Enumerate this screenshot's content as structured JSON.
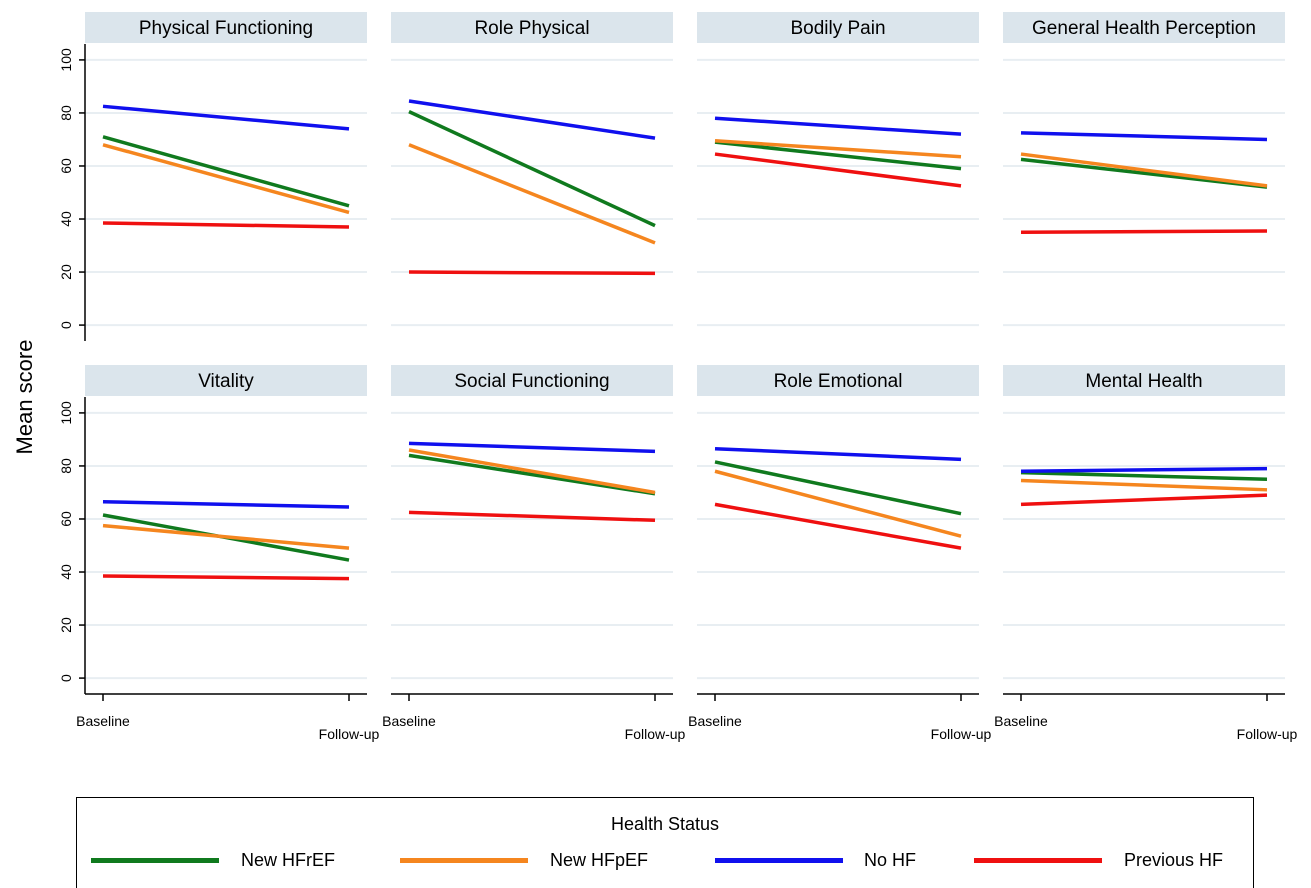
{
  "chart_data": {
    "type": "line",
    "y_axis_title": "Mean score",
    "x_categories": [
      "Baseline",
      "Follow-up"
    ],
    "y_ticks": [
      0,
      20,
      40,
      60,
      80,
      100
    ],
    "ylim": [
      -6,
      106
    ],
    "grid": true,
    "legend": {
      "title": "Health Status",
      "placement": "bottom",
      "entries": [
        "New HFrEF",
        "New HFpEF",
        "No HF",
        "Previous HF"
      ]
    },
    "series_styles": [
      {
        "name": "New HFrEF",
        "color": "#107a1e"
      },
      {
        "name": "New HFpEF",
        "color": "#f5861f"
      },
      {
        "name": "No HF",
        "color": "#1010ee"
      },
      {
        "name": "Previous HF",
        "color": "#ef1010"
      }
    ],
    "panels": [
      {
        "title": "Physical Functioning",
        "series": [
          {
            "name": "New HFrEF",
            "values": [
              71,
              45
            ]
          },
          {
            "name": "New HFpEF",
            "values": [
              68,
              42.5
            ]
          },
          {
            "name": "No HF",
            "values": [
              82.5,
              74
            ]
          },
          {
            "name": "Previous HF",
            "values": [
              38.5,
              37
            ]
          }
        ]
      },
      {
        "title": "Role Physical",
        "series": [
          {
            "name": "New HFrEF",
            "values": [
              80.5,
              37.5
            ]
          },
          {
            "name": "New HFpEF",
            "values": [
              68,
              31
            ]
          },
          {
            "name": "No HF",
            "values": [
              84.5,
              70.5
            ]
          },
          {
            "name": "Previous HF",
            "values": [
              20,
              19.5
            ]
          }
        ]
      },
      {
        "title": "Bodily Pain",
        "series": [
          {
            "name": "New HFrEF",
            "values": [
              69,
              59
            ]
          },
          {
            "name": "New HFpEF",
            "values": [
              69.5,
              63.5
            ]
          },
          {
            "name": "No HF",
            "values": [
              78,
              72
            ]
          },
          {
            "name": "Previous HF",
            "values": [
              64.5,
              52.5
            ]
          }
        ]
      },
      {
        "title": "General Health Perception",
        "series": [
          {
            "name": "New HFrEF",
            "values": [
              62.5,
              52
            ]
          },
          {
            "name": "New HFpEF",
            "values": [
              64.5,
              52.5
            ]
          },
          {
            "name": "No HF",
            "values": [
              72.5,
              70
            ]
          },
          {
            "name": "Previous HF",
            "values": [
              35,
              35.5
            ]
          }
        ]
      },
      {
        "title": "Vitality",
        "series": [
          {
            "name": "New HFrEF",
            "values": [
              61.5,
              44.5
            ]
          },
          {
            "name": "New HFpEF",
            "values": [
              57.5,
              49
            ]
          },
          {
            "name": "No HF",
            "values": [
              66.5,
              64.5
            ]
          },
          {
            "name": "Previous HF",
            "values": [
              38.5,
              37.5
            ]
          }
        ]
      },
      {
        "title": "Social Functioning",
        "series": [
          {
            "name": "New HFrEF",
            "values": [
              84,
              69.5
            ]
          },
          {
            "name": "New HFpEF",
            "values": [
              86,
              70
            ]
          },
          {
            "name": "No HF",
            "values": [
              88.5,
              85.5
            ]
          },
          {
            "name": "Previous HF",
            "values": [
              62.5,
              59.5
            ]
          }
        ]
      },
      {
        "title": "Role Emotional",
        "series": [
          {
            "name": "New HFrEF",
            "values": [
              81.5,
              62
            ]
          },
          {
            "name": "New HFpEF",
            "values": [
              78,
              53.5
            ]
          },
          {
            "name": "No HF",
            "values": [
              86.5,
              82.5
            ]
          },
          {
            "name": "Previous HF",
            "values": [
              65.5,
              49
            ]
          }
        ]
      },
      {
        "title": "Mental Health",
        "series": [
          {
            "name": "New HFrEF",
            "values": [
              77.5,
              75
            ]
          },
          {
            "name": "New HFpEF",
            "values": [
              74.5,
              71
            ]
          },
          {
            "name": "No HF",
            "values": [
              78,
              79
            ]
          },
          {
            "name": "Previous HF",
            "values": [
              65.5,
              69
            ]
          }
        ]
      }
    ]
  }
}
